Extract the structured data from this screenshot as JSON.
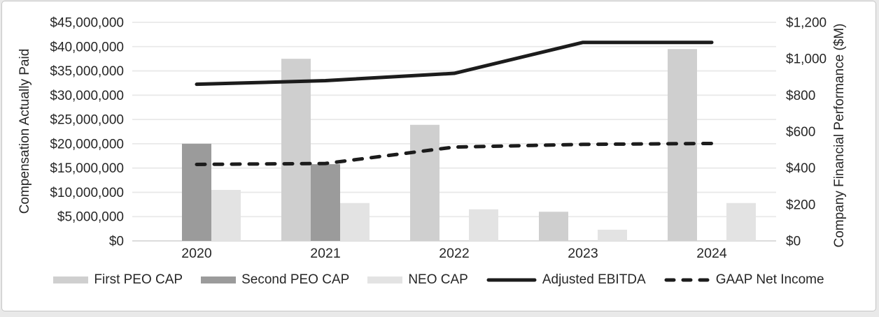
{
  "colors": {
    "page_background": "#e9e9e9",
    "card_background": "#ffffff",
    "card_border": "#c6c6c6",
    "gridline": "#e9e9e9",
    "baseline": "#dcdcdc",
    "text": "#262626",
    "line_color": "#1c1c1c"
  },
  "chart_data": {
    "type": "combo-bar-line",
    "title": "",
    "categories": [
      "2020",
      "2021",
      "2022",
      "2023",
      "2024"
    ],
    "bar_series": [
      {
        "name": "First PEO CAP",
        "axis": "left",
        "color": "#cfcfcf",
        "values": [
          null,
          37500000,
          23900000,
          6000000,
          39500000
        ]
      },
      {
        "name": "Second PEO CAP",
        "axis": "left",
        "color": "#9b9b9b",
        "values": [
          20000000,
          15800000,
          null,
          null,
          null
        ]
      },
      {
        "name": "NEO CAP",
        "axis": "left",
        "color": "#e3e3e3",
        "values": [
          10500000,
          7800000,
          6500000,
          2300000,
          7800000
        ]
      }
    ],
    "line_series": [
      {
        "name": "Adjusted EBITDA",
        "axis": "right",
        "style": "solid",
        "color": "#1c1c1c",
        "values": [
          860,
          880,
          920,
          1090,
          1090
        ]
      },
      {
        "name": "GAAP Net Income",
        "axis": "right",
        "style": "dashed",
        "color": "#1c1c1c",
        "values": [
          420,
          425,
          515,
          530,
          535
        ]
      }
    ],
    "left_axis": {
      "title": "Compensation Actually Paid",
      "min": 0,
      "max": 45000000,
      "step": 5000000,
      "ticks": [
        "$0",
        "$5,000,000",
        "$10,000,000",
        "$15,000,000",
        "$20,000,000",
        "$25,000,000",
        "$30,000,000",
        "$35,000,000",
        "$40,000,000",
        "$45,000,000"
      ]
    },
    "right_axis": {
      "title": "Company Financial Performance ($M)",
      "min": 0,
      "max": 1200,
      "step": 200,
      "ticks": [
        "$0",
        "$200",
        "$400",
        "$600",
        "$800",
        "$1,000",
        "$1,200"
      ]
    },
    "legend_position": "bottom",
    "grid": true
  }
}
